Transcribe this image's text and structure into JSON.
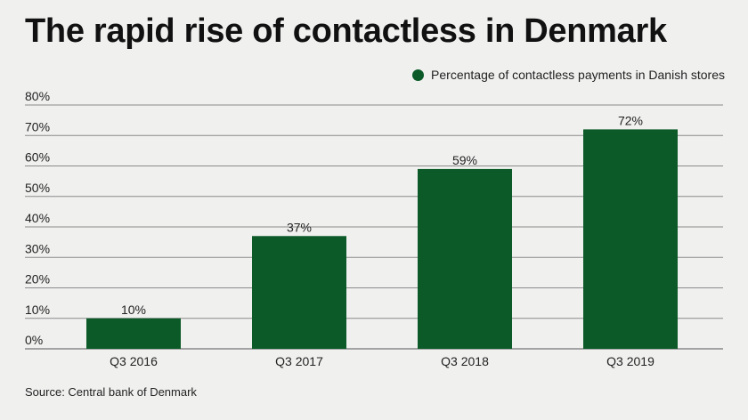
{
  "title": "The rapid rise of contactless in Denmark",
  "source": "Source: Central bank of Denmark",
  "colors": {
    "bar": "#0b5a27",
    "grid": "#8a8a8a",
    "background": "#f0f1ef"
  },
  "chart_data": {
    "type": "bar",
    "categories": [
      "Q3 2016",
      "Q3 2017",
      "Q3 2018",
      "Q3 2019"
    ],
    "series": [
      {
        "name": "Percentage of contactless payments in Danish stores",
        "values": [
          10,
          37,
          59,
          72
        ]
      }
    ],
    "data_labels": [
      "10%",
      "37%",
      "59%",
      "72%"
    ],
    "y_ticks": [
      "0%",
      "10%",
      "20%",
      "30%",
      "40%",
      "50%",
      "60%",
      "70%",
      "80%"
    ],
    "ylim": [
      0,
      80
    ],
    "grid": true,
    "legend_position": "top-right"
  }
}
